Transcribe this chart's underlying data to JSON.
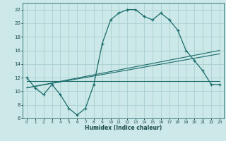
{
  "title": "",
  "xlabel": "Humidex (Indice chaleur)",
  "bg_color": "#cce8e8",
  "grid_color": "#aad0d0",
  "line_color": "#1a6b6b",
  "xlim": [
    -0.5,
    23.5
  ],
  "ylim": [
    6,
    23
  ],
  "xticks": [
    0,
    1,
    2,
    3,
    4,
    5,
    6,
    7,
    8,
    9,
    10,
    11,
    12,
    13,
    14,
    15,
    16,
    17,
    18,
    19,
    20,
    21,
    22,
    23
  ],
  "yticks": [
    6,
    8,
    10,
    12,
    14,
    16,
    18,
    20,
    22
  ],
  "main_data_x": [
    0,
    1,
    2,
    3,
    4,
    5,
    6,
    7,
    8,
    9,
    10,
    11,
    12,
    13,
    14,
    15,
    16,
    17,
    18,
    19,
    20,
    21,
    22,
    23
  ],
  "main_data_y": [
    12.0,
    10.5,
    9.5,
    11.0,
    9.5,
    7.5,
    6.5,
    7.5,
    11.0,
    17.0,
    20.5,
    21.5,
    22.0,
    22.0,
    21.0,
    20.5,
    21.5,
    20.5,
    19.0,
    16.0,
    14.5,
    13.0,
    11.0,
    11.0
  ],
  "line1_x": [
    0,
    23
  ],
  "line1_y": [
    11.5,
    11.5
  ],
  "line2_x": [
    0,
    23
  ],
  "line2_y": [
    10.5,
    15.5
  ],
  "line3_x": [
    0,
    23
  ],
  "line3_y": [
    10.5,
    16.0
  ]
}
